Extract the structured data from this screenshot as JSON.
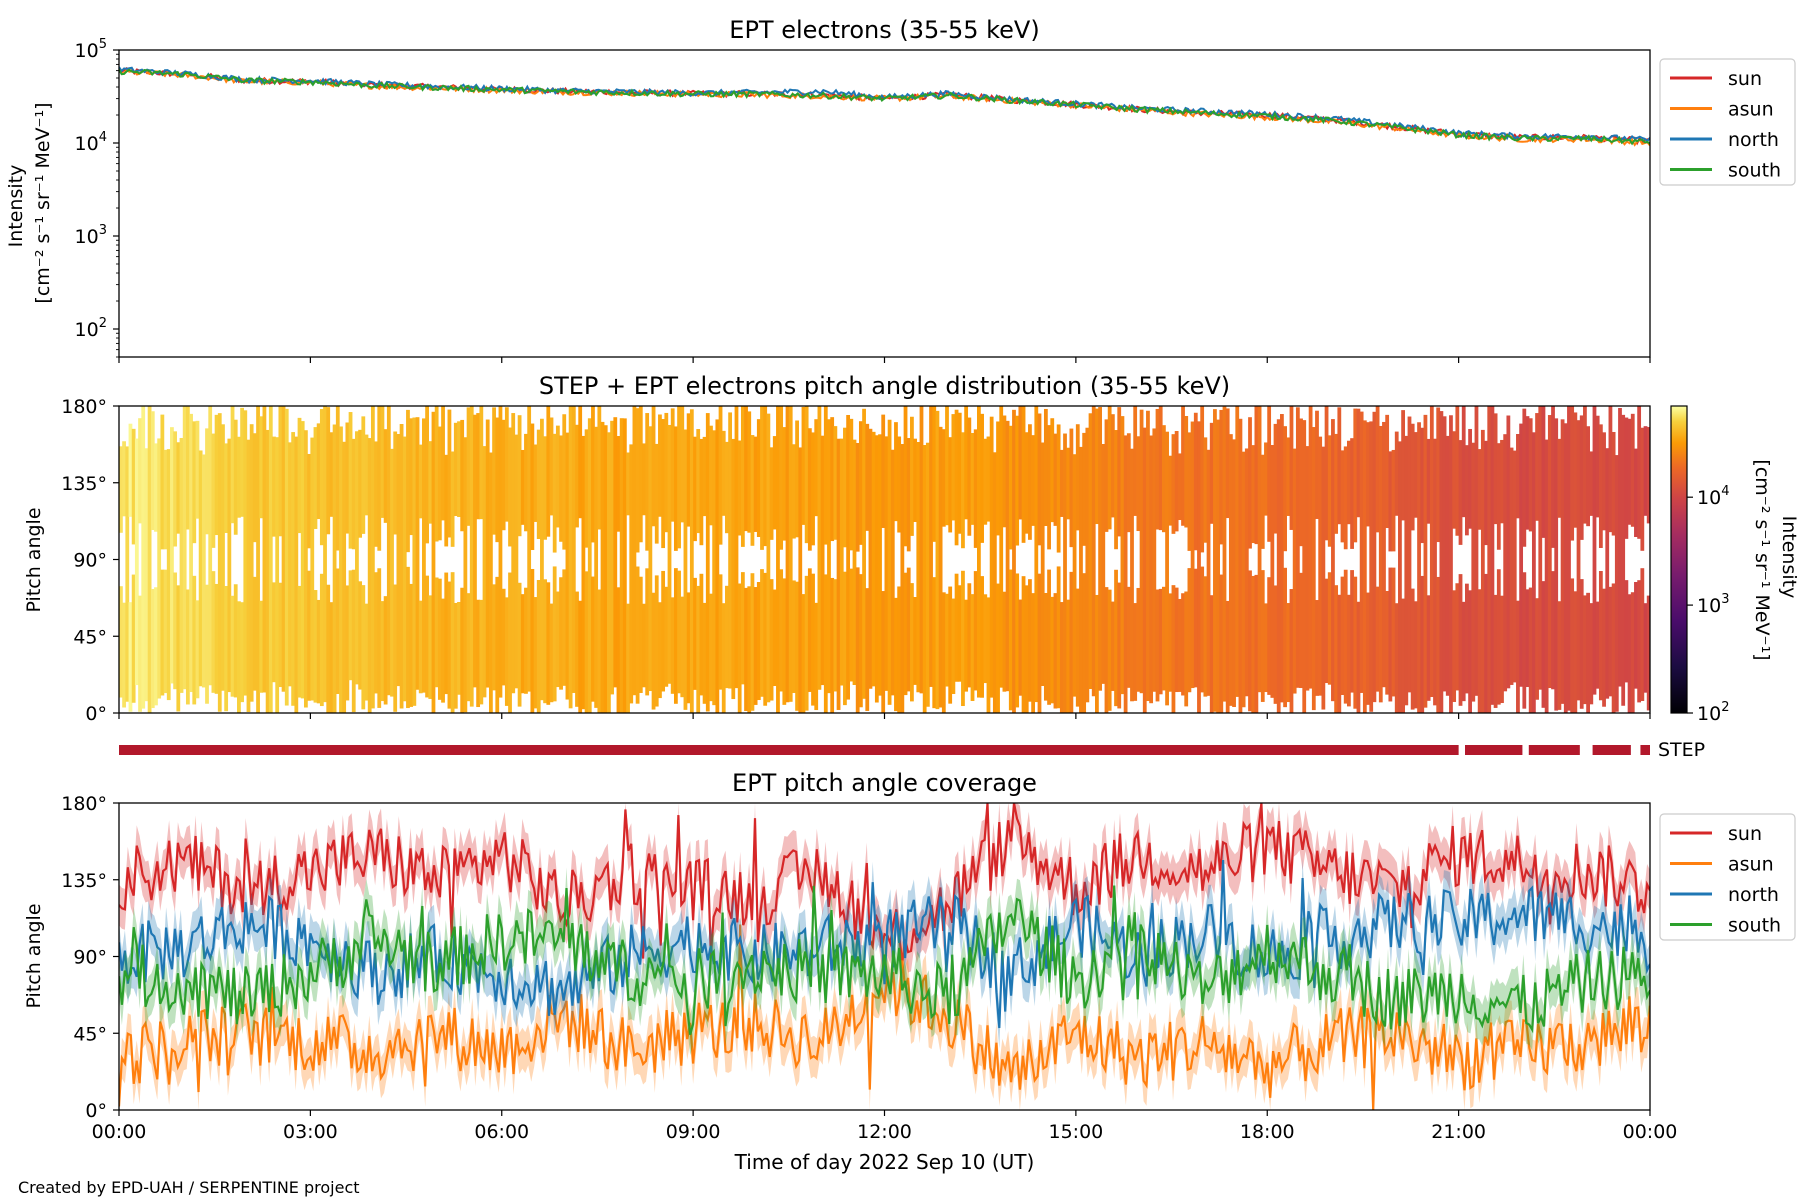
{
  "footer": "Created by EPD-UAH / SERPENTINE project",
  "xlabel": "Time of day 2022 Sep 10 (UT)",
  "x_ticks": [
    "00:00",
    "03:00",
    "06:00",
    "09:00",
    "12:00",
    "15:00",
    "18:00",
    "21:00",
    "00:00"
  ],
  "colors": {
    "sun": "#d62728",
    "asun": "#ff7f0e",
    "north": "#1f77b4",
    "south": "#2ca02c",
    "step_bar": "#b2182b"
  },
  "chart_data": [
    {
      "type": "line",
      "title": "EPT electrons (35-55 keV)",
      "ylabel_line1": "Intensity",
      "ylabel_line2": "[cm⁻² s⁻¹ sr⁻¹ MeV⁻¹]",
      "yscale": "log",
      "ylim": [
        50,
        100000
      ],
      "y_ticks": [
        {
          "base": "10",
          "exp": "2"
        },
        {
          "base": "10",
          "exp": "3"
        },
        {
          "base": "10",
          "exp": "4"
        },
        {
          "base": "10",
          "exp": "5"
        }
      ],
      "xlim_hours": [
        0,
        24
      ],
      "x": [
        0,
        1,
        2,
        3,
        4,
        5,
        6,
        7,
        8,
        9,
        10,
        11,
        12,
        13,
        14,
        15,
        16,
        17,
        18,
        19,
        20,
        21,
        22,
        23,
        24
      ],
      "legend": [
        "sun",
        "asun",
        "north",
        "south"
      ],
      "legend_position": "outside-right",
      "series": [
        {
          "name": "sun",
          "values": [
            60000,
            55000,
            47000,
            46000,
            42000,
            40000,
            38000,
            36000,
            35000,
            34000,
            34000,
            33000,
            30000,
            33000,
            29000,
            26000,
            23000,
            21000,
            20000,
            18000,
            15000,
            12500,
            11500,
            11500,
            10500
          ]
        },
        {
          "name": "asun",
          "values": [
            58000,
            54000,
            46000,
            45000,
            41000,
            39000,
            37000,
            35500,
            34500,
            33500,
            33000,
            32000,
            30000,
            32000,
            28500,
            25500,
            22500,
            20500,
            19000,
            17000,
            14500,
            12000,
            11000,
            11000,
            10000
          ]
        },
        {
          "name": "north",
          "values": [
            62000,
            56000,
            48000,
            47000,
            43000,
            40500,
            38500,
            36500,
            35500,
            34500,
            35000,
            36000,
            31000,
            34000,
            29500,
            26500,
            23500,
            22000,
            20500,
            18500,
            15500,
            12800,
            11800,
            11800,
            10800
          ]
        },
        {
          "name": "south",
          "values": [
            59000,
            55000,
            47000,
            45500,
            41500,
            39500,
            37500,
            35800,
            34800,
            33800,
            33500,
            32500,
            30000,
            32500,
            28800,
            25800,
            23000,
            21000,
            19500,
            17500,
            14800,
            12200,
            11200,
            11200,
            10200
          ]
        }
      ]
    },
    {
      "type": "heatmap",
      "title": "STEP + EPT electrons pitch angle distribution (35-55 keV)",
      "ylabel": "Pitch angle",
      "y_ticks": [
        "0°",
        "45°",
        "90°",
        "135°",
        "180°"
      ],
      "ylim": [
        0,
        180
      ],
      "xlim_hours": [
        0,
        24
      ],
      "colorbar": {
        "label_line1": "Intensity",
        "label_line2": "[cm⁻² s⁻¹ sr⁻¹ MeV⁻¹]",
        "scale": "log",
        "range": [
          100,
          70000
        ],
        "ticks": [
          {
            "base": "10",
            "exp": "2"
          },
          {
            "base": "10",
            "exp": "3"
          },
          {
            "base": "10",
            "exp": "4"
          }
        ],
        "colormap": "inferno"
      },
      "intensity_hourly": [
        60000,
        55000,
        47000,
        46000,
        42000,
        40000,
        38000,
        36000,
        35000,
        34000,
        34000,
        33000,
        30000,
        33000,
        29000,
        26000,
        23000,
        21000,
        20000,
        18000,
        15000,
        12500,
        11500,
        11500,
        10500
      ]
    },
    {
      "type": "bar",
      "label": "STEP",
      "segments_hours": [
        [
          0,
          21.0
        ],
        [
          21.1,
          22.0
        ],
        [
          22.1,
          22.9
        ],
        [
          23.1,
          23.7
        ],
        [
          23.85,
          24.0
        ]
      ]
    },
    {
      "type": "line",
      "title": "EPT pitch angle coverage",
      "ylabel": "Pitch angle",
      "y_ticks": [
        "0°",
        "45°",
        "90°",
        "135°",
        "180°"
      ],
      "ylim": [
        0,
        180
      ],
      "xlim_hours": [
        0,
        24
      ],
      "x": [
        0,
        1,
        2,
        3,
        4,
        5,
        6,
        7,
        8,
        9,
        10,
        11,
        12,
        13,
        14,
        15,
        16,
        17,
        18,
        19,
        20,
        21,
        22,
        23,
        24
      ],
      "legend": [
        "sun",
        "asun",
        "north",
        "south"
      ],
      "legend_position": "outside-right",
      "shaded_band": true,
      "series": [
        {
          "name": "sun",
          "values": [
            135,
            145,
            130,
            140,
            150,
            135,
            150,
            120,
            140,
            130,
            125,
            140,
            100,
            120,
            160,
            130,
            150,
            140,
            155,
            140,
            130,
            150,
            145,
            140,
            130
          ]
        },
        {
          "name": "asun",
          "values": [
            30,
            40,
            45,
            40,
            35,
            45,
            35,
            55,
            35,
            45,
            50,
            40,
            75,
            55,
            20,
            45,
            30,
            40,
            25,
            40,
            45,
            30,
            35,
            40,
            50
          ]
        },
        {
          "name": "north",
          "values": [
            90,
            95,
            110,
            100,
            80,
            90,
            80,
            70,
            90,
            100,
            90,
            95,
            100,
            110,
            80,
            110,
            90,
            105,
            90,
            100,
            110,
            110,
            115,
            110,
            100
          ]
        },
        {
          "name": "south",
          "values": [
            80,
            75,
            65,
            80,
            100,
            85,
            100,
            100,
            80,
            75,
            85,
            80,
            80,
            65,
            115,
            75,
            100,
            70,
            95,
            80,
            65,
            70,
            60,
            75,
            80
          ]
        }
      ]
    }
  ]
}
